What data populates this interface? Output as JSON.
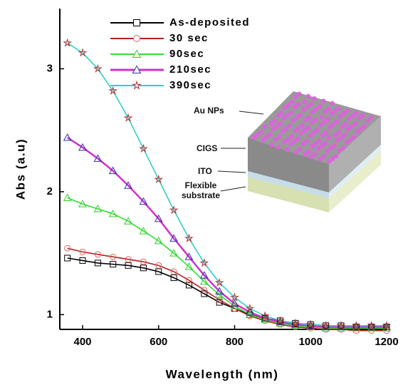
{
  "chart_data": {
    "type": "line",
    "x_label": "Wavelength (nm)",
    "y_label": "Abs (a.u)",
    "x": [
      360,
      400,
      440,
      480,
      520,
      560,
      600,
      640,
      680,
      720,
      760,
      800,
      840,
      880,
      920,
      960,
      1000,
      1040,
      1080,
      1120,
      1160,
      1200
    ],
    "series": [
      {
        "name": "As-deposited",
        "color": "#000000",
        "marker_color": "#000000",
        "marker": "square",
        "values": [
          1.46,
          1.44,
          1.42,
          1.41,
          1.4,
          1.38,
          1.35,
          1.3,
          1.24,
          1.17,
          1.1,
          1.05,
          1.0,
          0.97,
          0.95,
          0.93,
          0.92,
          0.91,
          0.91,
          0.9,
          0.9,
          0.9
        ]
      },
      {
        "name": "30 sec",
        "color": "#b22222",
        "marker_color": "#e06060",
        "marker": "circle",
        "values": [
          1.54,
          1.51,
          1.49,
          1.47,
          1.45,
          1.43,
          1.4,
          1.35,
          1.28,
          1.2,
          1.12,
          1.05,
          0.99,
          0.95,
          0.92,
          0.9,
          0.89,
          0.88,
          0.88,
          0.87,
          0.87,
          0.87
        ]
      },
      {
        "name": "90sec",
        "color": "#33dd33",
        "marker_color": "#33cc33",
        "marker": "triangle",
        "values": [
          1.95,
          1.9,
          1.86,
          1.82,
          1.76,
          1.68,
          1.6,
          1.5,
          1.39,
          1.27,
          1.16,
          1.07,
          1.0,
          0.96,
          0.93,
          0.91,
          0.9,
          0.89,
          0.89,
          0.89,
          0.89,
          0.89
        ]
      },
      {
        "name": "210sec",
        "color": "#cc33cc",
        "marker_color": "#3333aa",
        "marker": "triangle",
        "values": [
          2.44,
          2.36,
          2.27,
          2.17,
          2.05,
          1.92,
          1.78,
          1.62,
          1.47,
          1.32,
          1.19,
          1.09,
          1.02,
          0.97,
          0.94,
          0.92,
          0.91,
          0.9,
          0.9,
          0.9,
          0.9,
          0.9
        ]
      },
      {
        "name": "390sec",
        "color": "#33cccc",
        "marker_color": "#aa3333",
        "marker": "star",
        "values": [
          3.21,
          3.13,
          3.0,
          2.82,
          2.6,
          2.35,
          2.1,
          1.85,
          1.62,
          1.42,
          1.26,
          1.14,
          1.05,
          0.99,
          0.95,
          0.93,
          0.92,
          0.91,
          0.91,
          0.91,
          0.91,
          0.91
        ]
      }
    ],
    "xlim": [
      340,
      1200
    ],
    "ylim": [
      0.88,
      3.49
    ],
    "xticks": [
      400,
      600,
      800,
      1000,
      1200
    ],
    "yticks": [
      1,
      2,
      3
    ],
    "inset": {
      "labels": [
        "Au NPs",
        "CIGS",
        "ITO",
        "Flexible substrate"
      ]
    }
  }
}
